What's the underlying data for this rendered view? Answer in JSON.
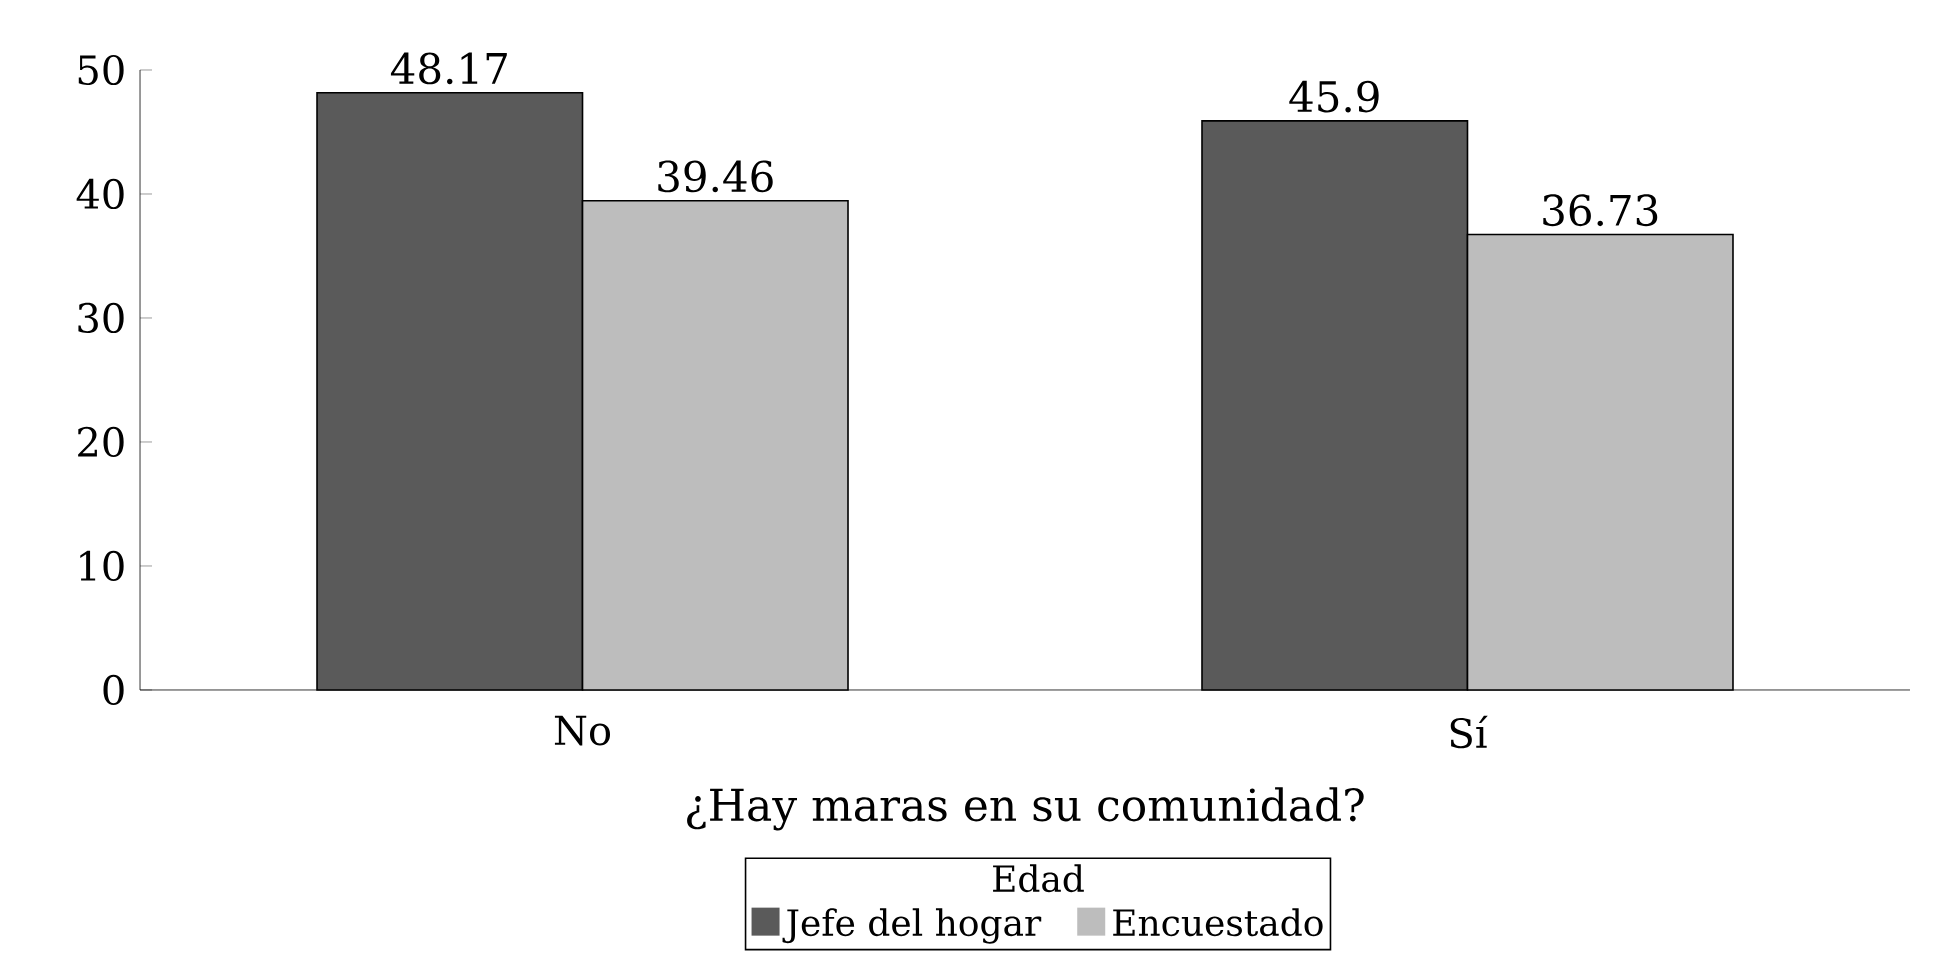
{
  "chart_data": {
    "type": "bar",
    "xlabel": "¿Hay maras en su comunidad?",
    "legend_title": "Edad",
    "categories": [
      "No",
      "Sí"
    ],
    "series": [
      {
        "name": "Jefe del hogar",
        "color": "#5a5a5a",
        "values": [
          48.17,
          45.9
        ]
      },
      {
        "name": "Encuestado",
        "color": "#bdbdbd",
        "values": [
          39.46,
          36.73
        ]
      }
    ],
    "ylim": [
      0,
      50
    ],
    "yticks": [
      0,
      10,
      20,
      30,
      40,
      50
    ],
    "data_labels": true,
    "legend": "bottom",
    "grid": false
  }
}
